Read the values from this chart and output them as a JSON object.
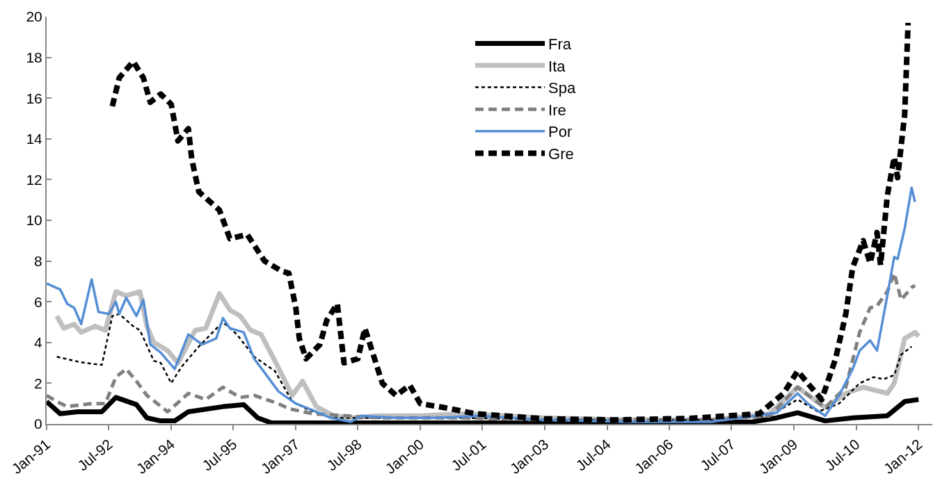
{
  "chart_data": {
    "type": "line",
    "legend": "top right",
    "marker": "none",
    "xlim": [
      "1991-01",
      "2012-05"
    ],
    "xticks": [
      {
        "value": "1991-01",
        "label": "Jan-91"
      },
      {
        "value": "1992-07",
        "label": "Jul-92"
      },
      {
        "value": "1994-01",
        "label": "Jan-94"
      },
      {
        "value": "1995-07",
        "label": "Jul-95"
      },
      {
        "value": "1997-01",
        "label": "Jan-97"
      },
      {
        "value": "1998-07",
        "label": "Jul-98"
      },
      {
        "value": "2000-01",
        "label": "Jan-00"
      },
      {
        "value": "2001-07",
        "label": "Jul-01"
      },
      {
        "value": "2003-01",
        "label": "Jan-03"
      },
      {
        "value": "2004-07",
        "label": "Jul-04"
      },
      {
        "value": "2006-01",
        "label": "Jan-06"
      },
      {
        "value": "2007-07",
        "label": "Jul-07"
      },
      {
        "value": "2009-01",
        "label": "Jan-09"
      },
      {
        "value": "2010-07",
        "label": "Jul-10"
      },
      {
        "value": "2012-01",
        "label": "Jan-12"
      }
    ],
    "ylim": [
      0,
      20
    ],
    "yticks": [
      0,
      2,
      4,
      6,
      8,
      10,
      12,
      14,
      16,
      18,
      20
    ],
    "series": [
      {
        "name": "Fra",
        "color": "#000000",
        "line_style": "solid",
        "x": [
          "1991-01",
          "1991-05",
          "1991-10",
          "1992-05",
          "1992-09",
          "1993-03",
          "1993-06",
          "1993-10",
          "1994-02",
          "1994-06",
          "1995-04",
          "1995-10",
          "1996-02",
          "1996-06",
          "2000-01",
          "2004-01",
          "2008-01",
          "2008-08",
          "2009-02",
          "2009-10",
          "2010-06",
          "2011-04",
          "2011-09",
          "2012-01"
        ],
        "values": [
          1.1,
          0.5,
          0.6,
          0.6,
          1.3,
          0.95,
          0.3,
          0.15,
          0.15,
          0.6,
          0.85,
          0.95,
          0.3,
          0.05,
          0.05,
          0.05,
          0.1,
          0.3,
          0.55,
          0.15,
          0.3,
          0.4,
          1.1,
          1.2
        ]
      },
      {
        "name": "Ita",
        "color": "#bfbfbf",
        "line_style": "solid",
        "x": [
          "1991-04",
          "1991-06",
          "1991-09",
          "1991-11",
          "1992-03",
          "1992-06",
          "1992-09",
          "1992-12",
          "1993-04",
          "1993-06",
          "1993-08",
          "1993-12",
          "1994-03",
          "1994-08",
          "1994-11",
          "1995-03",
          "1995-06",
          "1995-09",
          "1995-12",
          "1996-03",
          "1996-07",
          "1996-12",
          "1997-03",
          "1997-07",
          "1997-12",
          "1998-05",
          "1999-01",
          "2000-01",
          "2001-01",
          "2003-01",
          "2005-01",
          "2007-01",
          "2008-06",
          "2009-02",
          "2009-10",
          "2010-04",
          "2010-09",
          "2011-04",
          "2011-06",
          "2011-09",
          "2011-12",
          "2012-01"
        ],
        "values": [
          5.3,
          4.7,
          4.9,
          4.5,
          4.8,
          4.6,
          6.5,
          6.3,
          6.5,
          4.8,
          4.0,
          3.6,
          3.0,
          4.6,
          4.7,
          6.4,
          5.6,
          5.3,
          4.6,
          4.4,
          3.1,
          1.4,
          2.1,
          0.85,
          0.4,
          0.3,
          0.4,
          0.4,
          0.5,
          0.3,
          0.2,
          0.2,
          0.5,
          1.8,
          0.8,
          1.5,
          1.8,
          1.5,
          2.0,
          4.2,
          4.5,
          4.3
        ]
      },
      {
        "name": "Spa",
        "color": "#000000",
        "line_style": "dotted",
        "x": [
          "1991-04",
          "1991-09",
          "1991-12",
          "1992-05",
          "1992-08",
          "1992-10",
          "1993-02",
          "1993-04",
          "1993-08",
          "1993-10",
          "1994-01",
          "1994-04",
          "1994-09",
          "1995-01",
          "1995-04",
          "1995-08",
          "1996-01",
          "1996-07",
          "1996-12",
          "1997-04",
          "1997-11",
          "1999-01",
          "2001-01",
          "2003-01",
          "2005-01",
          "2007-01",
          "2008-06",
          "2009-02",
          "2009-08",
          "2010-02",
          "2010-08",
          "2010-12",
          "2011-03",
          "2011-06",
          "2011-08",
          "2011-11"
        ],
        "values": [
          3.3,
          3.1,
          3.0,
          2.9,
          5.3,
          5.4,
          4.8,
          4.6,
          3.1,
          3.0,
          2.0,
          2.8,
          3.8,
          4.5,
          5.0,
          4.4,
          3.3,
          2.6,
          1.1,
          0.75,
          0.3,
          0.3,
          0.3,
          0.2,
          0.2,
          0.2,
          0.4,
          1.2,
          0.6,
          1.0,
          2.0,
          2.3,
          2.2,
          2.4,
          3.4,
          3.8
        ]
      },
      {
        "name": "Ire",
        "color": "#808080",
        "line_style": "dashed",
        "x": [
          "1991-01",
          "1991-04",
          "1991-07",
          "1992-02",
          "1992-06",
          "1992-09",
          "1992-12",
          "1993-03",
          "1993-06",
          "1993-12",
          "1994-06",
          "1994-11",
          "1995-04",
          "1995-09",
          "1996-01",
          "1996-08",
          "1996-11",
          "1997-06",
          "1999-01",
          "2001-01",
          "2003-01",
          "2005-01",
          "2007-01",
          "2008-06",
          "2009-02",
          "2009-10",
          "2010-04",
          "2010-08",
          "2010-11",
          "2011-01",
          "2011-04",
          "2011-06",
          "2011-08",
          "2011-11",
          "2011-12"
        ],
        "values": [
          1.4,
          1.1,
          0.85,
          1.0,
          1.0,
          2.3,
          2.7,
          2.1,
          1.4,
          0.6,
          1.5,
          1.2,
          1.8,
          1.3,
          1.4,
          1.0,
          0.75,
          0.5,
          0.3,
          0.3,
          0.2,
          0.2,
          0.2,
          0.4,
          1.8,
          0.8,
          1.8,
          4.5,
          5.7,
          5.8,
          6.5,
          7.4,
          6.1,
          6.7,
          6.8
        ]
      },
      {
        "name": "Por",
        "color": "#558ed5",
        "line_style": "solid",
        "x": [
          "1991-01",
          "1991-05",
          "1991-07",
          "1991-09",
          "1991-11",
          "1992-02",
          "1992-04",
          "1992-07",
          "1992-09",
          "1992-10",
          "1992-12",
          "1993-03",
          "1993-05",
          "1993-07",
          "1993-10",
          "1994-02",
          "1994-06",
          "1994-10",
          "1995-02",
          "1995-04",
          "1995-06",
          "1995-10",
          "1996-01",
          "1996-05",
          "1996-08",
          "1997-01",
          "1997-07",
          "1997-11",
          "1998-05",
          "1998-08",
          "1999-06",
          "2000-06",
          "2001-06",
          "2003-01",
          "2005-01",
          "2007-01",
          "2008-08",
          "2009-02",
          "2009-05",
          "2009-10",
          "2010-02",
          "2010-06",
          "2010-08",
          "2010-11",
          "2011-01",
          "2011-04",
          "2011-06",
          "2011-07",
          "2011-09",
          "2011-11",
          "2011-12"
        ],
        "values": [
          6.9,
          6.6,
          5.9,
          5.7,
          4.9,
          7.1,
          5.5,
          5.4,
          6.0,
          5.4,
          6.2,
          5.3,
          6.1,
          3.9,
          3.5,
          2.7,
          4.4,
          3.9,
          4.2,
          5.2,
          4.7,
          4.5,
          3.2,
          2.3,
          1.6,
          1.0,
          0.6,
          0.3,
          0.1,
          0.4,
          0.3,
          0.3,
          0.4,
          0.2,
          0.1,
          0.1,
          0.55,
          1.5,
          1.0,
          0.4,
          1.4,
          2.7,
          3.6,
          4.1,
          3.6,
          6.3,
          8.2,
          8.1,
          9.6,
          11.6,
          10.9
        ]
      },
      {
        "name": "Gre",
        "color": "#000000",
        "line_style": "dashed",
        "x": [
          "1992-08",
          "1992-10",
          "1993-02",
          "1993-05",
          "1993-07",
          "1993-10",
          "1994-01",
          "1994-03",
          "1994-06",
          "1994-07",
          "1994-09",
          "1995-03",
          "1995-06",
          "1995-11",
          "1996-04",
          "1996-09",
          "1996-11",
          "1997-01",
          "1997-02",
          "1997-04",
          "1997-08",
          "1997-10",
          "1998-01",
          "1998-03",
          "1998-07",
          "1998-09",
          "1999-02",
          "1999-06",
          "1999-10",
          "2000-01",
          "2000-08",
          "2001-05",
          "2003-01",
          "2004-09",
          "2006-07",
          "2008-03",
          "2008-10",
          "2009-02",
          "2009-05",
          "2009-09",
          "2010-01",
          "2010-04",
          "2010-06",
          "2010-09",
          "2010-11",
          "2011-01",
          "2011-02",
          "2011-04",
          "2011-06",
          "2011-07",
          "2011-09",
          "2011-10"
        ],
        "values": [
          15.6,
          17.0,
          17.8,
          17.0,
          15.8,
          16.2,
          15.7,
          13.9,
          14.5,
          13.0,
          11.4,
          10.5,
          9.1,
          9.3,
          8.0,
          7.5,
          7.4,
          5.7,
          4.2,
          3.2,
          3.9,
          5.1,
          5.9,
          3.0,
          3.2,
          4.7,
          2.0,
          1.4,
          1.9,
          1.0,
          0.8,
          0.5,
          0.25,
          0.2,
          0.27,
          0.5,
          1.5,
          2.6,
          2.0,
          1.2,
          3.2,
          5.4,
          7.7,
          9.0,
          7.9,
          9.4,
          7.8,
          11.2,
          13.1,
          12.1,
          15.2,
          19.7
        ]
      }
    ]
  }
}
